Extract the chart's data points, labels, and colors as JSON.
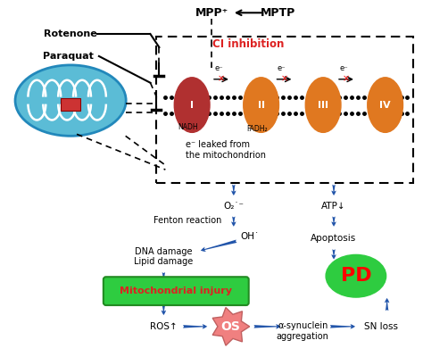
{
  "bg_color": "#ffffff",
  "mito_color": "#5bbcd6",
  "complex_I_color": "#b03030",
  "complex_II_IV_color": "#e07820",
  "arrow_color": "#2255aa",
  "ci_inhibition_color": "#dd2222",
  "mito_injury_box_color": "#2ecc40",
  "mito_injury_text_color": "#dd2222",
  "pd_color": "#2ecc40",
  "os_color": "#f08080",
  "labels": {
    "MPP": "MPP⁺",
    "MPTP": "MPTP",
    "Rotenone": "Rotenone",
    "Paraquat": "Paraquat",
    "CI_inhibition": "CI inhibition",
    "NADH": "NADH",
    "FADH2": "FADH₂",
    "e_leaked": "e⁻ leaked from\nthe mitochondrion",
    "O2": "O₂˙⁻",
    "Fenton": "Fenton reaction",
    "OH": "OH˙",
    "DNA_damage": "DNA damage\nLipid damage",
    "ATP": "ATP↓",
    "Apoptosis": "Apoptosis",
    "Mito_injury": "Mitochondrial injury",
    "ROS": "ROS↑",
    "OS": "OS",
    "alpha_syn": "α-synuclein\naggregation",
    "SN_loss": "SN loss",
    "PD": "PD",
    "complexes": [
      "I",
      "II",
      "III",
      "IV"
    ],
    "e_minus": "e⁻"
  }
}
